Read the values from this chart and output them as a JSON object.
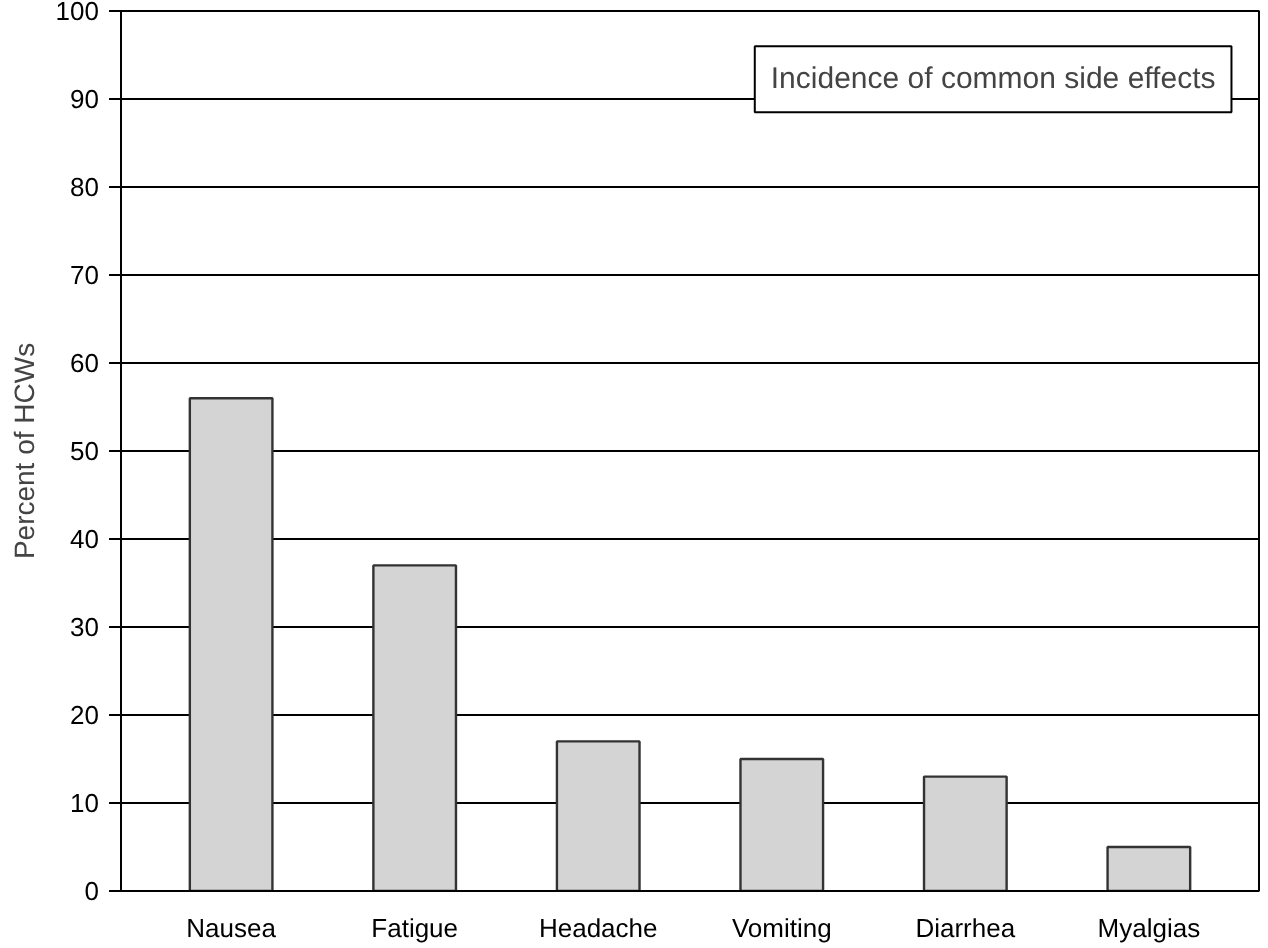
{
  "chart_data": {
    "type": "bar",
    "title": "Incidence of common side effects",
    "ylabel": "Percent of HCWs",
    "categories": [
      "Nausea",
      "Fatigue",
      "Headache",
      "Vomiting",
      "Diarrhea",
      "Myalgias"
    ],
    "values": [
      56,
      37,
      17,
      15,
      13,
      5
    ],
    "color": "#d4d4d4",
    "ylim": [
      0,
      100
    ],
    "yticks": [
      0,
      10,
      20,
      30,
      40,
      50,
      60,
      70,
      80,
      90,
      100
    ],
    "grid": "y"
  }
}
